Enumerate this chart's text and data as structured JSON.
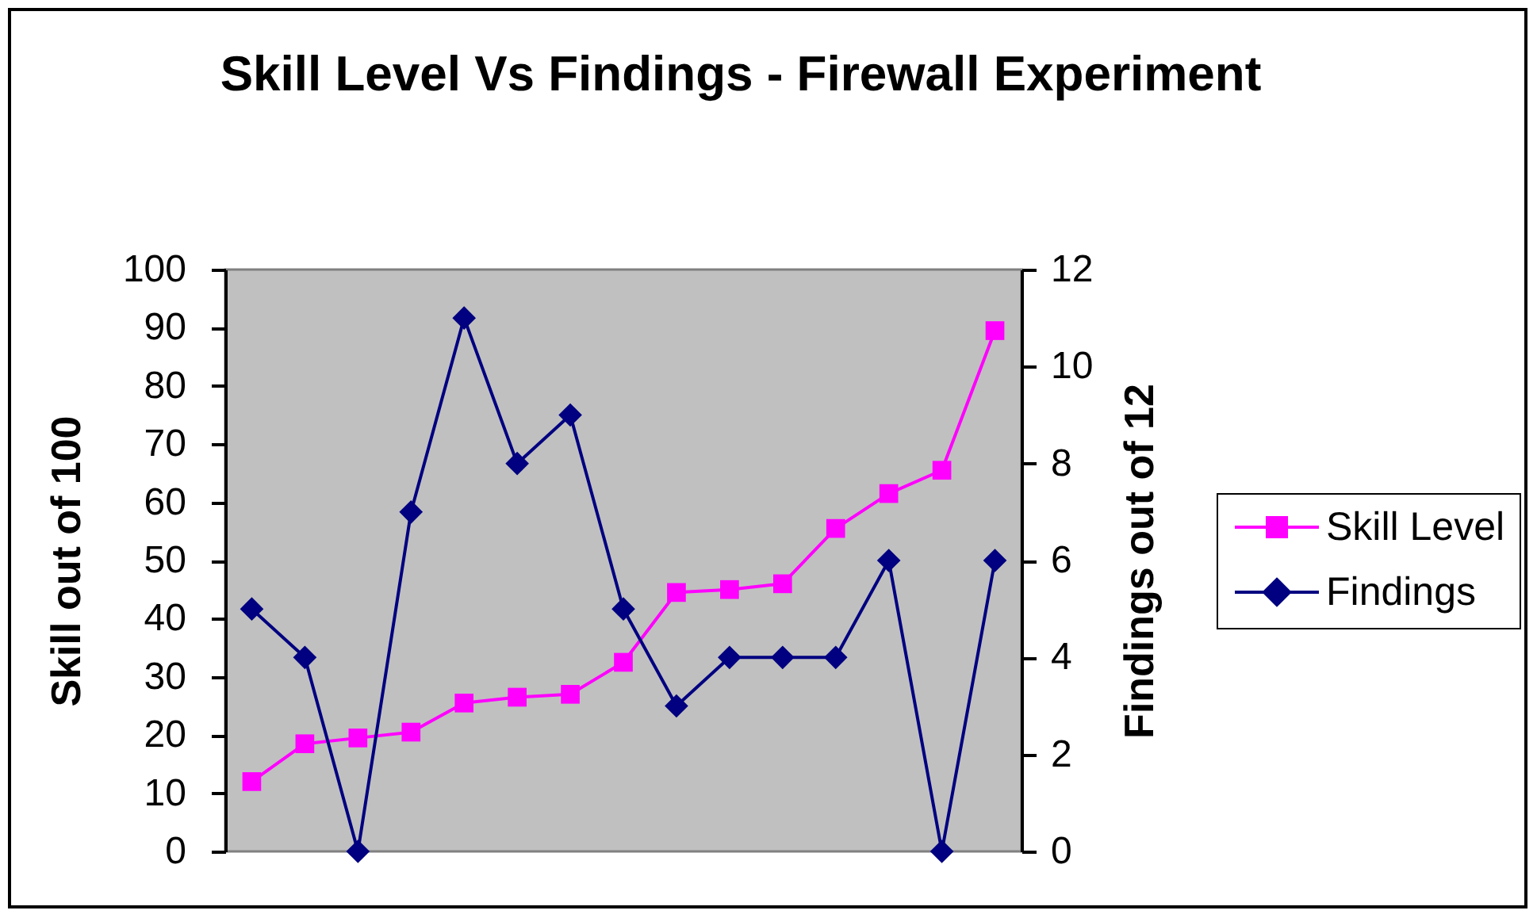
{
  "chart_data": {
    "type": "line",
    "title": "Skill Level Vs Findings - Firewall Experiment",
    "ylabel": "Skill out of 100",
    "y2label": "Findings out of 12",
    "categories": [
      null,
      null,
      null,
      null,
      null,
      null,
      null,
      null,
      null,
      null,
      null,
      null,
      null,
      null,
      null
    ],
    "series": [
      {
        "name": "Skill Level",
        "color": "#ff00ff",
        "marker": "square",
        "values": [
          12,
          18.5,
          19.5,
          20.5,
          25.5,
          26.5,
          27,
          32.5,
          44.5,
          45,
          46,
          55.5,
          61.5,
          65.5,
          89.5
        ]
      },
      {
        "name": "Findings",
        "color": "#000080",
        "marker": "diamond",
        "axis": "y2",
        "values": [
          5,
          4,
          0,
          7,
          11,
          8,
          9,
          5,
          3,
          4,
          4,
          4,
          6,
          0,
          6
        ]
      }
    ],
    "ylim": [
      0,
      100
    ],
    "yticks": [
      0,
      10,
      20,
      30,
      40,
      50,
      60,
      70,
      80,
      90,
      100
    ],
    "y2lim": [
      0,
      12
    ],
    "y2ticks": [
      0,
      2,
      4,
      6,
      8,
      10,
      12
    ],
    "grid": false,
    "legend": "right",
    "line_style": "solid"
  }
}
